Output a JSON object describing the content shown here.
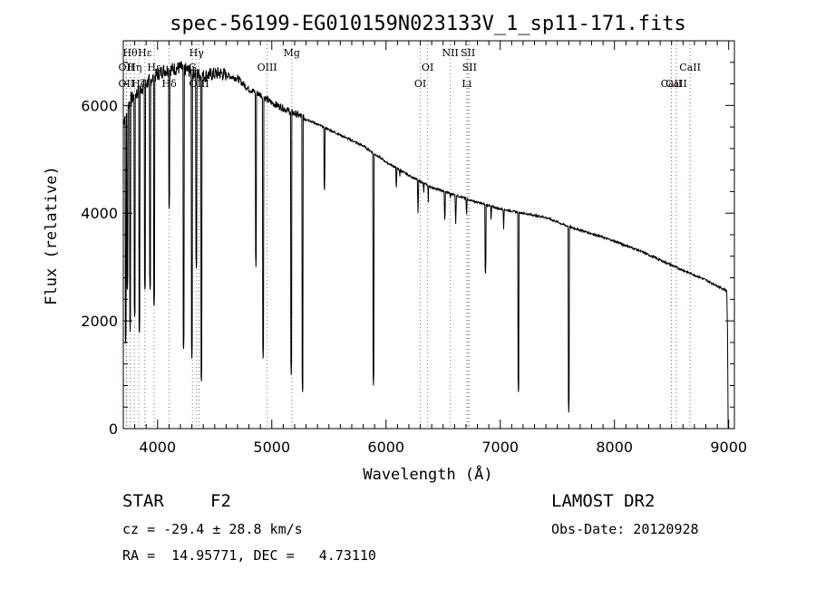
{
  "chart_data": {
    "type": "line",
    "title": "spec-56199-EG010159N023133V_1_sp11-171.fits",
    "xlabel": "Wavelength (Å)",
    "ylabel": "Flux (relative)",
    "xlim": [
      3700,
      9050
    ],
    "ylim": [
      0,
      7200
    ],
    "xticks": [
      4000,
      5000,
      6000,
      7000,
      8000,
      9000
    ],
    "yticks": [
      0,
      2000,
      4000,
      6000
    ],
    "grid": false,
    "continuum": [
      [
        3700,
        5700
      ],
      [
        3760,
        6100
      ],
      [
        3850,
        6300
      ],
      [
        3950,
        6500
      ],
      [
        4050,
        6650
      ],
      [
        4200,
        6700
      ],
      [
        4400,
        6550
      ],
      [
        4550,
        6600
      ],
      [
        4700,
        6500
      ],
      [
        4800,
        6300
      ],
      [
        4900,
        6200
      ],
      [
        5000,
        6050
      ],
      [
        5100,
        5950
      ],
      [
        5200,
        5850
      ],
      [
        5400,
        5650
      ],
      [
        5600,
        5450
      ],
      [
        5800,
        5250
      ],
      [
        6000,
        4950
      ],
      [
        6200,
        4700
      ],
      [
        6400,
        4480
      ],
      [
        6600,
        4340
      ],
      [
        6800,
        4200
      ],
      [
        7000,
        4080
      ],
      [
        7200,
        4000
      ],
      [
        7400,
        3920
      ],
      [
        7600,
        3750
      ],
      [
        7800,
        3620
      ],
      [
        8000,
        3480
      ],
      [
        8200,
        3320
      ],
      [
        8400,
        3130
      ],
      [
        8600,
        2940
      ],
      [
        8800,
        2760
      ],
      [
        8980,
        2560
      ]
    ],
    "absorption_lines": [
      [
        3720,
        1500
      ],
      [
        3735,
        2500
      ],
      [
        3760,
        1800
      ],
      [
        3800,
        2000
      ],
      [
        3840,
        1700
      ],
      [
        3890,
        2500
      ],
      [
        3935,
        2500
      ],
      [
        3969,
        2200
      ],
      [
        4101,
        4000
      ],
      [
        4227,
        1400
      ],
      [
        4300,
        1300
      ],
      [
        4340,
        2900
      ],
      [
        4383,
        800
      ],
      [
        4861,
        3000
      ],
      [
        4924,
        1300
      ],
      [
        5170,
        1000
      ],
      [
        5270,
        600
      ],
      [
        5460,
        4350
      ],
      [
        5890,
        800
      ],
      [
        6090,
        4400
      ],
      [
        6120,
        4600
      ],
      [
        6160,
        4800
      ],
      [
        6280,
        4000
      ],
      [
        6330,
        4300
      ],
      [
        6370,
        4200
      ],
      [
        6450,
        4400
      ],
      [
        6515,
        3800
      ],
      [
        6563,
        4200
      ],
      [
        6610,
        3800
      ],
      [
        6650,
        4300
      ],
      [
        6705,
        3900
      ],
      [
        6870,
        2800
      ],
      [
        6920,
        3800
      ],
      [
        7030,
        3700
      ],
      [
        7160,
        600
      ],
      [
        7600,
        300
      ]
    ],
    "spectral_lines": [
      {
        "wavelength": 3727,
        "label": "OII",
        "row": 2,
        "color": "#2f7a2f"
      },
      {
        "wavelength": 3727,
        "label": "OII",
        "row": 3,
        "color": "#2f7a2f"
      },
      {
        "wavelength": 3760,
        "label": "Hθ",
        "row": 1,
        "color": "#777777"
      },
      {
        "wavelength": 3798,
        "label": "Hη",
        "row": 2,
        "color": "#777777"
      },
      {
        "wavelength": 3835,
        "label": "Hζ",
        "row": 3,
        "color": "#777777"
      },
      {
        "wavelength": 3889,
        "label": "Hε",
        "row": 1,
        "color": "#777777"
      },
      {
        "wavelength": 3970,
        "label": "Hε",
        "row": 2,
        "color": "#777777"
      },
      {
        "wavelength": 4102,
        "label": "Hδ",
        "row": 3,
        "color": "#777777"
      },
      {
        "wavelength": 4305,
        "label": "G",
        "row": 2,
        "color": "#777777"
      },
      {
        "wavelength": 4341,
        "label": "Hγ",
        "row": 1,
        "color": "#777777"
      },
      {
        "wavelength": 4363,
        "label": "OIII",
        "row": 3,
        "color": "#777777"
      },
      {
        "wavelength": 4959,
        "label": "OIII",
        "row": 2,
        "color": "#777777"
      },
      {
        "wavelength": 5175,
        "label": "Mg",
        "row": 1,
        "color": "#777777"
      },
      {
        "wavelength": 6300,
        "label": "OI",
        "row": 3,
        "color": "#777777"
      },
      {
        "wavelength": 6364,
        "label": "OI",
        "row": 2,
        "color": "#777777"
      },
      {
        "wavelength": 6563,
        "label": "NII",
        "row": 1,
        "color": "#777777"
      },
      {
        "wavelength": 6707,
        "label": "Li",
        "row": 3,
        "color": "#777777"
      },
      {
        "wavelength": 6717,
        "label": "SII",
        "row": 1,
        "color": "#777777"
      },
      {
        "wavelength": 6731,
        "label": "SII",
        "row": 2,
        "color": "#777777"
      },
      {
        "wavelength": 8498,
        "label": "CaII",
        "row": 3,
        "color": "#b05050"
      },
      {
        "wavelength": 8542,
        "label": "CaII",
        "row": 3,
        "color": "#b05050"
      },
      {
        "wavelength": 8662,
        "label": "CaII",
        "row": 2,
        "color": "#b05050"
      }
    ]
  },
  "info": {
    "class": "STAR",
    "subclass": "F2",
    "cz": "cz = -29.4 ± 28.8 km/s",
    "coords": "RA =  14.95771, DEC =   4.73110",
    "survey": "LAMOST DR2",
    "obs_date": "Obs-Date: 20120928"
  }
}
